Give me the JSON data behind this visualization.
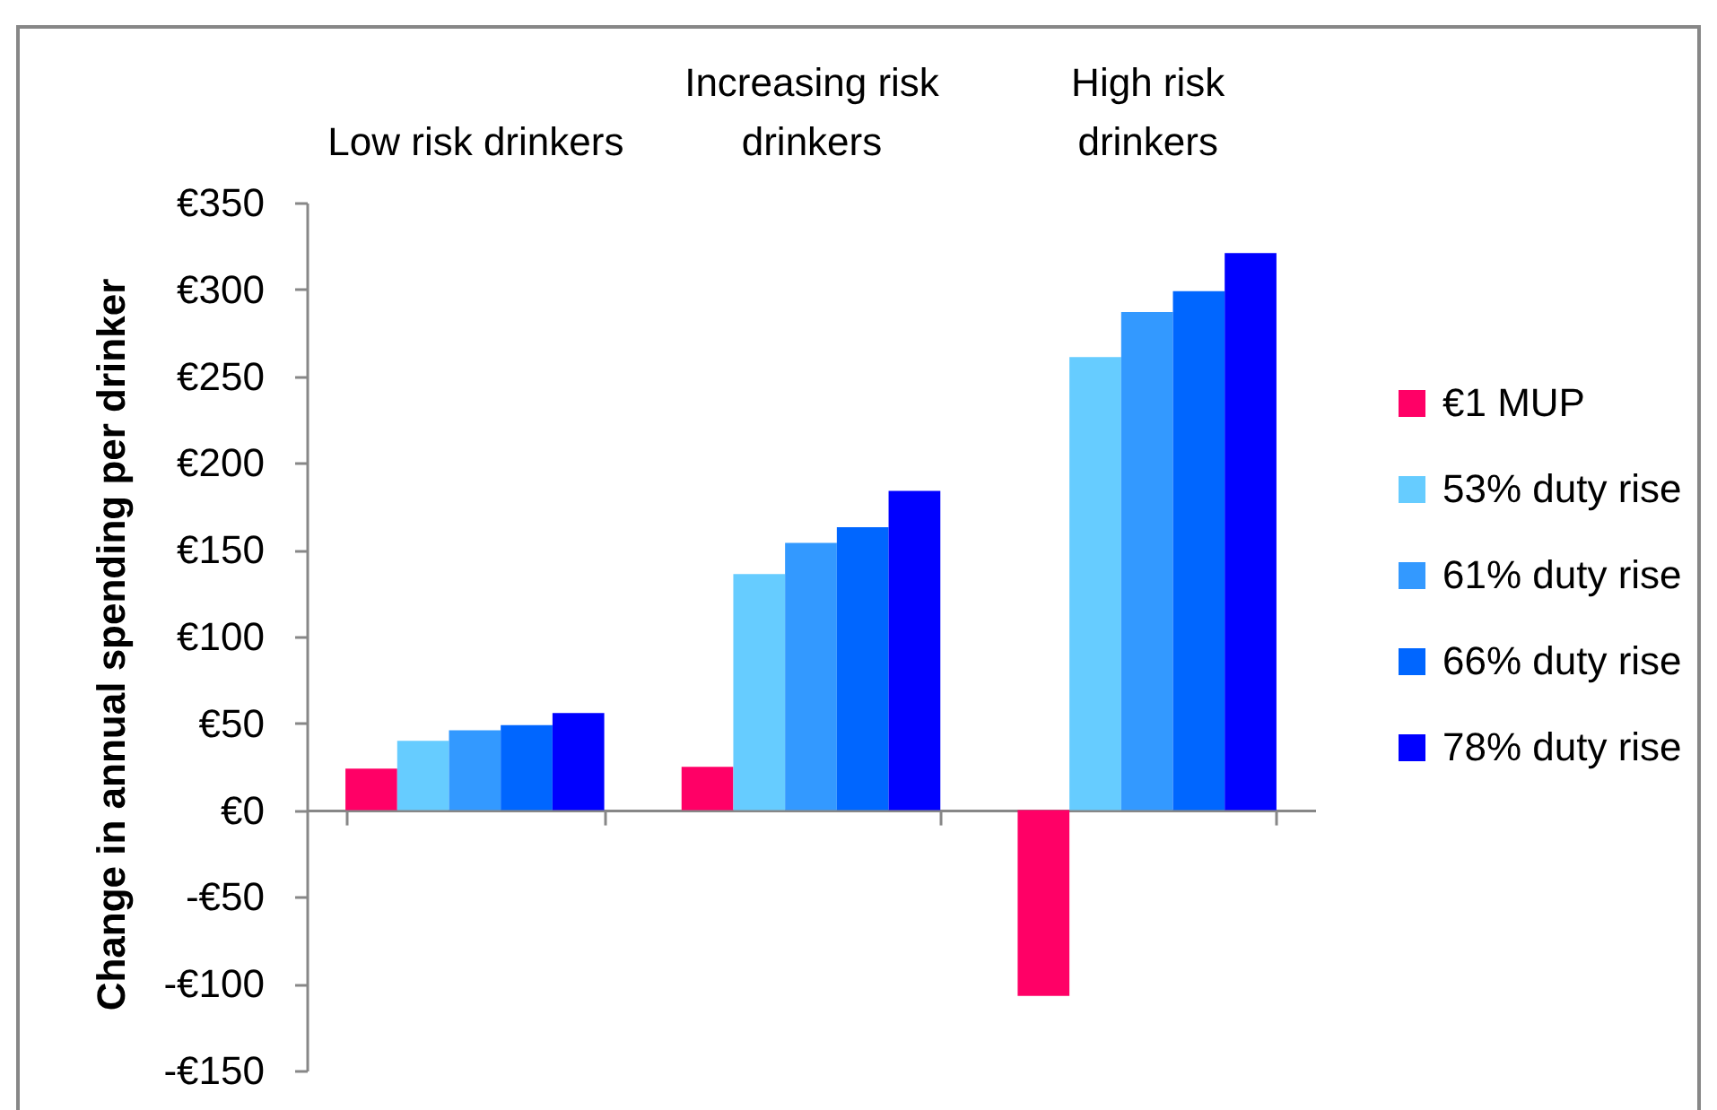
{
  "chart_data": {
    "type": "bar",
    "categories": [
      "Low risk drinkers",
      "Increasing risk drinkers",
      "High risk drinkers"
    ],
    "ylabel": "Change in annual spending per drinker",
    "ylim": [
      -150,
      350
    ],
    "yticks": [
      {
        "value": -150,
        "label": "-€150"
      },
      {
        "value": -100,
        "label": "-€100"
      },
      {
        "value": -50,
        "label": "-€50"
      },
      {
        "value": 0,
        "label": "€0"
      },
      {
        "value": 50,
        "label": "€50"
      },
      {
        "value": 100,
        "label": "€100"
      },
      {
        "value": 150,
        "label": "€150"
      },
      {
        "value": 200,
        "label": "€200"
      },
      {
        "value": 250,
        "label": "€250"
      },
      {
        "value": 300,
        "label": "€300"
      },
      {
        "value": 350,
        "label": "€350"
      }
    ],
    "legend": "right",
    "series": [
      {
        "name": "€1 MUP",
        "color": "#ff0066",
        "values": [
          24,
          25,
          -107
        ]
      },
      {
        "name": "53% duty rise",
        "color": "#66ccff",
        "values": [
          40,
          136,
          261
        ]
      },
      {
        "name": "61% duty rise",
        "color": "#3399ff",
        "values": [
          46,
          154,
          287
        ]
      },
      {
        "name": "66% duty rise",
        "color": "#0066ff",
        "values": [
          49,
          163,
          299
        ]
      },
      {
        "name": "78% duty rise",
        "color": "#0000ff",
        "values": [
          56,
          184,
          321
        ]
      }
    ]
  }
}
